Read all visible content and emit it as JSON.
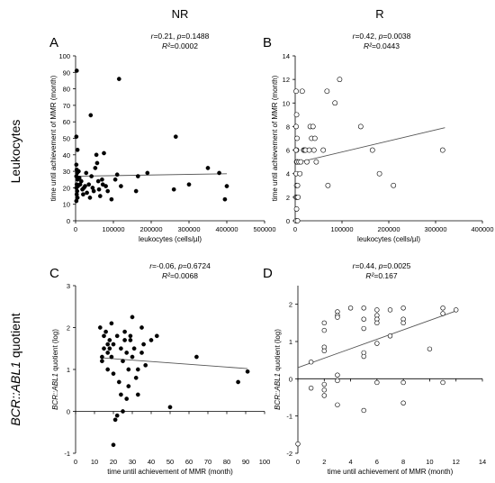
{
  "column_headers": [
    "NR",
    "R"
  ],
  "row_labels": [
    {
      "parts": [
        {
          "text": "Leukocytes",
          "italic": false
        }
      ]
    },
    {
      "parts": [
        {
          "text": "BCR::ABL1",
          "italic": true
        },
        {
          "text": " quotient",
          "italic": false
        }
      ]
    }
  ],
  "chart_data": [
    {
      "panel": "A",
      "type": "scatter",
      "marker": "filled",
      "stats": {
        "line1_parts": [
          {
            "text": "r",
            "italic": true
          },
          {
            "text": "=0.21, ",
            "italic": false
          },
          {
            "text": "p",
            "italic": true
          },
          {
            "text": "=0.1488",
            "italic": false
          }
        ],
        "line2_parts": [
          {
            "text": "R²",
            "italic": true
          },
          {
            "text": "=0.0002",
            "italic": false
          }
        ]
      },
      "xlabel": "leukocytes (cells/µl)",
      "ylabel": "time until achievement of MMR (month)",
      "xlim": [
        0,
        500000
      ],
      "ylim": [
        0,
        100
      ],
      "xticks": [
        0,
        100000,
        200000,
        300000,
        400000,
        500000
      ],
      "yticks": [
        0,
        10,
        20,
        30,
        40,
        50,
        60,
        70,
        80,
        90,
        100
      ],
      "trend": {
        "x": [
          0,
          400000
        ],
        "y": [
          27,
          28.5
        ]
      },
      "points": [
        [
          3000,
          91
        ],
        [
          2000,
          51
        ],
        [
          5000,
          43
        ],
        [
          2000,
          34
        ],
        [
          3000,
          31
        ],
        [
          4000,
          29
        ],
        [
          2000,
          27
        ],
        [
          5000,
          25
        ],
        [
          3000,
          22
        ],
        [
          6000,
          21
        ],
        [
          2000,
          20
        ],
        [
          4000,
          18
        ],
        [
          3000,
          16
        ],
        [
          5000,
          14
        ],
        [
          2000,
          12
        ],
        [
          8000,
          30
        ],
        [
          10000,
          26
        ],
        [
          12000,
          22
        ],
        [
          15000,
          24
        ],
        [
          18000,
          19
        ],
        [
          20000,
          16
        ],
        [
          22000,
          20
        ],
        [
          25000,
          21
        ],
        [
          28000,
          29
        ],
        [
          30000,
          17
        ],
        [
          35000,
          22
        ],
        [
          38000,
          14
        ],
        [
          40000,
          64
        ],
        [
          42000,
          27
        ],
        [
          45000,
          20
        ],
        [
          48000,
          18
        ],
        [
          52000,
          32
        ],
        [
          55000,
          40
        ],
        [
          57000,
          35
        ],
        [
          60000,
          24
        ],
        [
          62000,
          19
        ],
        [
          65000,
          15
        ],
        [
          70000,
          25
        ],
        [
          72000,
          22
        ],
        [
          75000,
          41
        ],
        [
          80000,
          21
        ],
        [
          85000,
          18
        ],
        [
          95000,
          13
        ],
        [
          105000,
          25
        ],
        [
          110000,
          28
        ],
        [
          115000,
          86
        ],
        [
          120000,
          21
        ],
        [
          160000,
          18
        ],
        [
          165000,
          27
        ],
        [
          190000,
          29
        ],
        [
          260000,
          19
        ],
        [
          265000,
          51
        ],
        [
          300000,
          22
        ],
        [
          350000,
          32
        ],
        [
          380000,
          29
        ],
        [
          400000,
          21
        ],
        [
          395000,
          13
        ]
      ]
    },
    {
      "panel": "B",
      "type": "scatter",
      "marker": "open",
      "stats": {
        "line1_parts": [
          {
            "text": "r",
            "italic": true
          },
          {
            "text": "=0.42, ",
            "italic": false
          },
          {
            "text": "p",
            "italic": true
          },
          {
            "text": "=0.0038",
            "italic": false
          }
        ],
        "line2_parts": [
          {
            "text": "R²",
            "italic": true
          },
          {
            "text": "=0.0443",
            "italic": false
          }
        ]
      },
      "xlabel": "leukocytes (cells/µl)",
      "ylabel": "time until achievement of MMR (month)",
      "xlim": [
        0,
        400000
      ],
      "ylim": [
        0,
        14
      ],
      "xticks": [
        0,
        100000,
        200000,
        300000,
        400000
      ],
      "yticks": [
        0,
        2,
        4,
        6,
        8,
        10,
        12,
        14
      ],
      "trend": {
        "x": [
          0,
          320000
        ],
        "y": [
          4.9,
          7.9
        ]
      },
      "points": [
        [
          2000,
          11
        ],
        [
          3000,
          9
        ],
        [
          2000,
          8
        ],
        [
          4000,
          7
        ],
        [
          3000,
          6
        ],
        [
          2000,
          6
        ],
        [
          5000,
          5
        ],
        [
          3000,
          5
        ],
        [
          4000,
          5
        ],
        [
          2000,
          4
        ],
        [
          3000,
          3
        ],
        [
          5000,
          3
        ],
        [
          2000,
          2
        ],
        [
          4000,
          2
        ],
        [
          6000,
          2
        ],
        [
          3000,
          1
        ],
        [
          2000,
          0
        ],
        [
          5000,
          0
        ],
        [
          8000,
          5
        ],
        [
          10000,
          4
        ],
        [
          12000,
          5
        ],
        [
          15000,
          11
        ],
        [
          18000,
          6
        ],
        [
          20000,
          6
        ],
        [
          22000,
          6
        ],
        [
          25000,
          5
        ],
        [
          30000,
          6
        ],
        [
          32000,
          8
        ],
        [
          35000,
          7
        ],
        [
          38000,
          8
        ],
        [
          40000,
          6
        ],
        [
          42000,
          7
        ],
        [
          45000,
          5
        ],
        [
          60000,
          6
        ],
        [
          68000,
          11
        ],
        [
          70000,
          3
        ],
        [
          85000,
          10
        ],
        [
          95000,
          12
        ],
        [
          140000,
          8
        ],
        [
          165000,
          6
        ],
        [
          180000,
          4
        ],
        [
          210000,
          3
        ],
        [
          315000,
          6
        ]
      ]
    },
    {
      "panel": "C",
      "type": "scatter",
      "marker": "filled",
      "stats": {
        "line1_parts": [
          {
            "text": "r",
            "italic": true
          },
          {
            "text": "=-0.06, ",
            "italic": false
          },
          {
            "text": "p",
            "italic": true
          },
          {
            "text": "=0.6724",
            "italic": false
          }
        ],
        "line2_parts": [
          {
            "text": "R²",
            "italic": true
          },
          {
            "text": "=0.0068",
            "italic": false
          }
        ]
      },
      "xlabel": "time until achievement of MMR (month)",
      "ylabel_parts": [
        {
          "text": "BCR::ABL1",
          "italic": true
        },
        {
          "text": " quotient (log)",
          "italic": false
        }
      ],
      "xlim": [
        0,
        100
      ],
      "ylim": [
        -1,
        3
      ],
      "xticks": [
        0,
        10,
        20,
        30,
        40,
        50,
        60,
        70,
        80,
        90,
        100
      ],
      "yticks": [
        -1,
        0,
        1,
        2,
        3
      ],
      "trend": {
        "x": [
          13,
          91
        ],
        "y": [
          1.28,
          1.02
        ]
      },
      "points": [
        [
          13,
          2.0
        ],
        [
          14,
          1.3
        ],
        [
          14,
          1.2
        ],
        [
          15,
          1.8
        ],
        [
          15,
          1.5
        ],
        [
          16,
          1.9
        ],
        [
          17,
          1.6
        ],
        [
          17,
          1.4
        ],
        [
          17,
          1.0
        ],
        [
          18,
          1.7
        ],
        [
          18,
          1.5
        ],
        [
          19,
          2.1
        ],
        [
          19,
          1.3
        ],
        [
          20,
          1.6
        ],
        [
          20,
          0.9
        ],
        [
          20,
          -0.8
        ],
        [
          21,
          -0.2
        ],
        [
          22,
          -0.1
        ],
        [
          22,
          1.8
        ],
        [
          23,
          0.7
        ],
        [
          24,
          1.5
        ],
        [
          24,
          0.4
        ],
        [
          25,
          0.0
        ],
        [
          25,
          1.2
        ],
        [
          26,
          1.9
        ],
        [
          26,
          1.7
        ],
        [
          27,
          1.4
        ],
        [
          27,
          0.3
        ],
        [
          28,
          1.0
        ],
        [
          28,
          0.6
        ],
        [
          29,
          1.7
        ],
        [
          29,
          1.8
        ],
        [
          30,
          2.25
        ],
        [
          30,
          1.3
        ],
        [
          31,
          1.5
        ],
        [
          32,
          0.8
        ],
        [
          33,
          0.4
        ],
        [
          33,
          1.0
        ],
        [
          35,
          1.4
        ],
        [
          35,
          2.0
        ],
        [
          36,
          1.6
        ],
        [
          37,
          1.1
        ],
        [
          40,
          1.7
        ],
        [
          43,
          1.8
        ],
        [
          50,
          0.1
        ],
        [
          64,
          1.3
        ],
        [
          86,
          0.7
        ],
        [
          91,
          0.95
        ]
      ]
    },
    {
      "panel": "D",
      "type": "scatter",
      "marker": "open",
      "stats": {
        "line1_parts": [
          {
            "text": "r",
            "italic": true
          },
          {
            "text": "=0.44, ",
            "italic": false
          },
          {
            "text": "p",
            "italic": true
          },
          {
            "text": "=0.0025",
            "italic": false
          }
        ],
        "line2_parts": [
          {
            "text": "R²",
            "italic": true
          },
          {
            "text": "=0.167",
            "italic": false
          }
        ]
      },
      "xlabel": "time until achievement of MMR (month)",
      "ylabel_parts": [
        {
          "text": "BCR::ABL1",
          "italic": true
        },
        {
          "text": " quotient (log)",
          "italic": false
        }
      ],
      "xlim": [
        0,
        14
      ],
      "ylim": [
        -2,
        2.5
      ],
      "xticks": [
        0,
        2,
        4,
        6,
        8,
        10,
        12,
        14
      ],
      "yticks": [
        -2,
        -1,
        0,
        1,
        2
      ],
      "trend": {
        "x": [
          0,
          12
        ],
        "y": [
          0.3,
          1.82
        ]
      },
      "points": [
        [
          0,
          -1.75
        ],
        [
          1,
          -0.25
        ],
        [
          1,
          0.45
        ],
        [
          2,
          1.5
        ],
        [
          2,
          1.3
        ],
        [
          2,
          0.85
        ],
        [
          2,
          0.75
        ],
        [
          2,
          -0.15
        ],
        [
          2,
          -0.3
        ],
        [
          2,
          -0.45
        ],
        [
          3,
          1.8
        ],
        [
          3,
          1.7
        ],
        [
          3,
          1.65
        ],
        [
          3,
          0.1
        ],
        [
          3,
          -0.05
        ],
        [
          3,
          -0.7
        ],
        [
          4,
          1.9
        ],
        [
          5,
          1.9
        ],
        [
          5,
          1.6
        ],
        [
          5,
          1.35
        ],
        [
          5,
          0.7
        ],
        [
          5,
          0.6
        ],
        [
          5,
          -0.85
        ],
        [
          6,
          1.85
        ],
        [
          6,
          1.7
        ],
        [
          6,
          1.6
        ],
        [
          6,
          1.5
        ],
        [
          6,
          0.95
        ],
        [
          6,
          -0.1
        ],
        [
          7,
          1.85
        ],
        [
          7,
          1.15
        ],
        [
          8,
          1.9
        ],
        [
          8,
          1.6
        ],
        [
          8,
          1.5
        ],
        [
          8,
          -0.1
        ],
        [
          8,
          -0.65
        ],
        [
          10,
          0.8
        ],
        [
          11,
          1.9
        ],
        [
          11,
          1.75
        ],
        [
          11,
          -0.1
        ],
        [
          12,
          1.85
        ]
      ]
    }
  ]
}
